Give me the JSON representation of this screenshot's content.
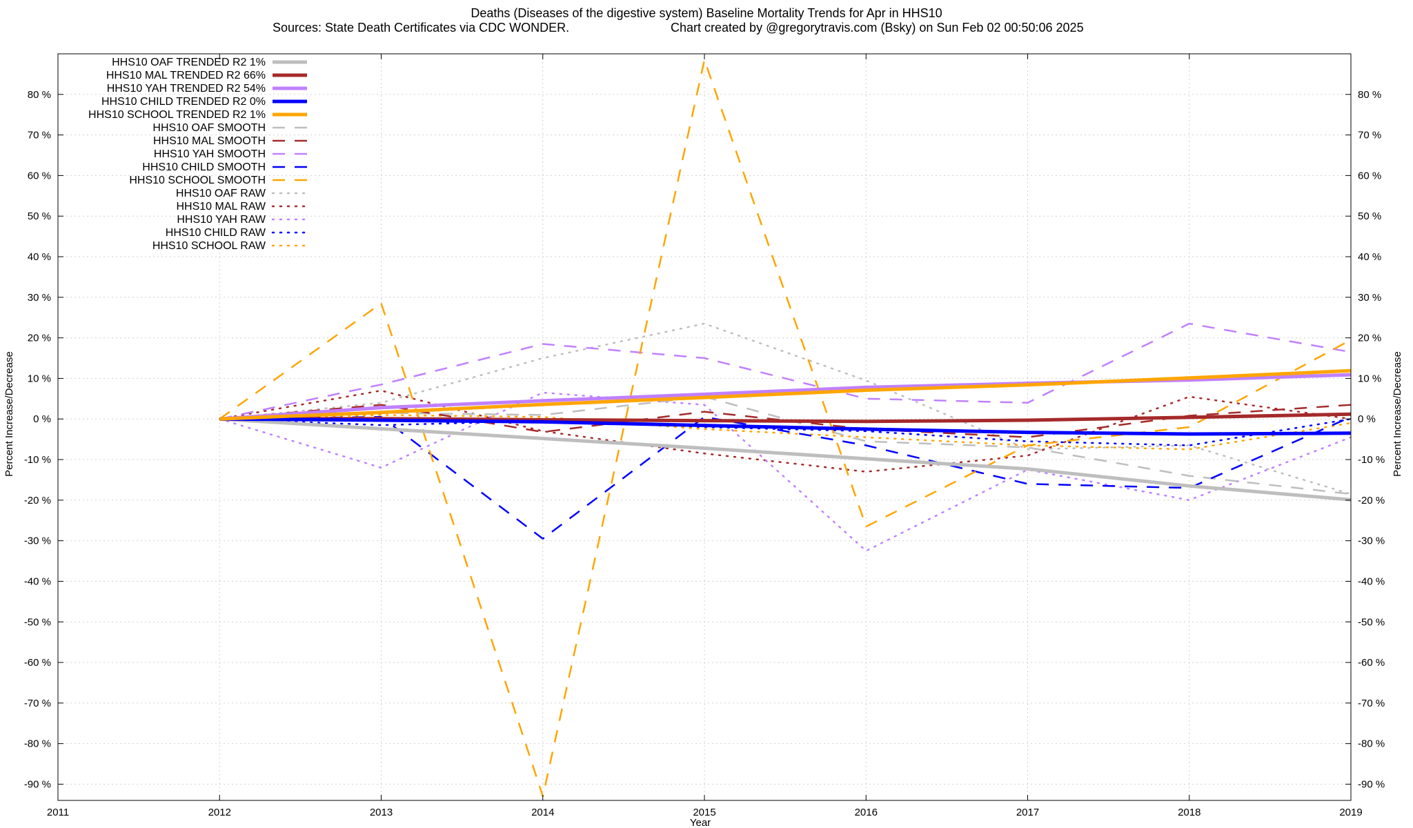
{
  "chart_data": {
    "type": "line",
    "title": "Deaths (Diseases of the digestive system)  Baseline Mortality Trends for Apr in HHS10",
    "subtitle_left": "Sources: State Death Certificates via CDC WONDER.",
    "subtitle_right": "Chart created by @gregorytravis.com (Bsky) on Sun Feb 02 00:50:06 2025",
    "xlabel": "Year",
    "ylabel": "Percent Increase/Decrease",
    "xlim": [
      2011,
      2019
    ],
    "ylim": [
      -94,
      90
    ],
    "x_ticks": [
      2011,
      2012,
      2013,
      2014,
      2015,
      2016,
      2017,
      2018,
      2019
    ],
    "y_ticks": [
      80,
      70,
      60,
      50,
      40,
      30,
      20,
      10,
      0,
      -10,
      -20,
      -30,
      -40,
      -50,
      -60,
      -70,
      -80,
      -90
    ],
    "y_tick_suffix": " %",
    "grid": true,
    "legend_position": "top-left",
    "x": [
      2012,
      2013,
      2014,
      2015,
      2016,
      2017,
      2018,
      2019
    ],
    "series": [
      {
        "name": "HHS10 OAF TRENDED R2  1%",
        "style": "trend",
        "color": "#bebebe",
        "values": [
          0,
          -2.4,
          -4.8,
          -7.2,
          -9.8,
          -12.3,
          -16.5,
          -19.9
        ]
      },
      {
        "name": "HHS10 MAL TRENDED R2  66%",
        "style": "trend",
        "color": "#a52a2a",
        "values": [
          0,
          0.1,
          -0.2,
          -0.4,
          -0.6,
          -0.3,
          0.4,
          1.2
        ]
      },
      {
        "name": "HHS10 YAH TRENDED R2  54%",
        "style": "trend",
        "color": "#c080ff",
        "values": [
          0,
          2.8,
          4.5,
          6.1,
          7.8,
          8.8,
          9.6,
          10.9
        ]
      },
      {
        "name": "HHS10 CHILD TRENDED R2  0%",
        "style": "trend",
        "color": "#0000ff",
        "values": [
          0,
          -0.3,
          -0.7,
          -1.6,
          -2.5,
          -3.3,
          -3.7,
          -3.5
        ]
      },
      {
        "name": "HHS10 SCHOOL TRENDED R2  1%",
        "style": "trend",
        "color": "#ffa500",
        "values": [
          0,
          1.6,
          3.6,
          5.3,
          7.1,
          8.4,
          10.1,
          11.9
        ]
      },
      {
        "name": "HHS10 OAF SMOOTH",
        "style": "smooth",
        "color": "#bebebe",
        "values": [
          0,
          1.5,
          1.0,
          5.5,
          -5.5,
          -7.0,
          -14.0,
          -18.5
        ]
      },
      {
        "name": "HHS10 MAL SMOOTH",
        "style": "smooth",
        "color": "#a52a2a",
        "values": [
          0,
          3.5,
          -3.2,
          1.8,
          -2.5,
          -4.5,
          0.8,
          3.5
        ]
      },
      {
        "name": "HHS10 YAH SMOOTH",
        "style": "smooth",
        "color": "#c080ff",
        "values": [
          0,
          8.5,
          18.5,
          15.0,
          5.0,
          4.0,
          23.5,
          16.5
        ]
      },
      {
        "name": "HHS10 CHILD SMOOTH",
        "style": "smooth",
        "color": "#0000ff",
        "values": [
          0,
          0.5,
          -29.5,
          0.5,
          -6.5,
          -16.0,
          -17.0,
          0.5
        ]
      },
      {
        "name": "HHS10 SCHOOL SMOOTH",
        "style": "smooth",
        "color": "#ffa500",
        "values": [
          0,
          28.5,
          -93.0,
          88.5,
          -26.5,
          -6.5,
          -2.0,
          19.5
        ]
      },
      {
        "name": "HHS10 OAF RAW",
        "style": "raw",
        "color": "#bebebe",
        "values": [
          0,
          4.0,
          15.0,
          23.5,
          9.5,
          -7.5,
          -6.5,
          -18.5
        ]
      },
      {
        "name": "HHS10 MAL RAW",
        "style": "raw",
        "color": "#a52a2a",
        "values": [
          0,
          7.0,
          -3.0,
          -8.5,
          -13.0,
          -9.0,
          5.5,
          0.0
        ]
      },
      {
        "name": "HHS10 YAH RAW",
        "style": "raw",
        "color": "#c080ff",
        "values": [
          0,
          -12.0,
          6.5,
          3.5,
          -32.5,
          -12.5,
          -20.0,
          -4.5
        ]
      },
      {
        "name": "HHS10 CHILD RAW",
        "style": "raw",
        "color": "#0000ff",
        "values": [
          0,
          -1.5,
          -0.5,
          -2.0,
          -3.0,
          -5.5,
          -6.5,
          0.0
        ]
      },
      {
        "name": "HHS10 SCHOOL RAW",
        "style": "raw",
        "color": "#ffa500",
        "values": [
          0,
          1.0,
          0.5,
          -2.5,
          -4.5,
          -6.5,
          -7.5,
          -1.0
        ]
      }
    ]
  }
}
